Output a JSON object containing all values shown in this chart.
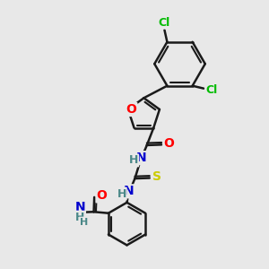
{
  "bg_color": "#e8e8e8",
  "bond_color": "#1a1a1a",
  "bond_width": 1.8,
  "atom_colors": {
    "O": "#ff0000",
    "N": "#0000cd",
    "S": "#cccc00",
    "Cl": "#00bb00",
    "H": "#4a8888",
    "C": "#1a1a1a"
  },
  "font_size": 9
}
